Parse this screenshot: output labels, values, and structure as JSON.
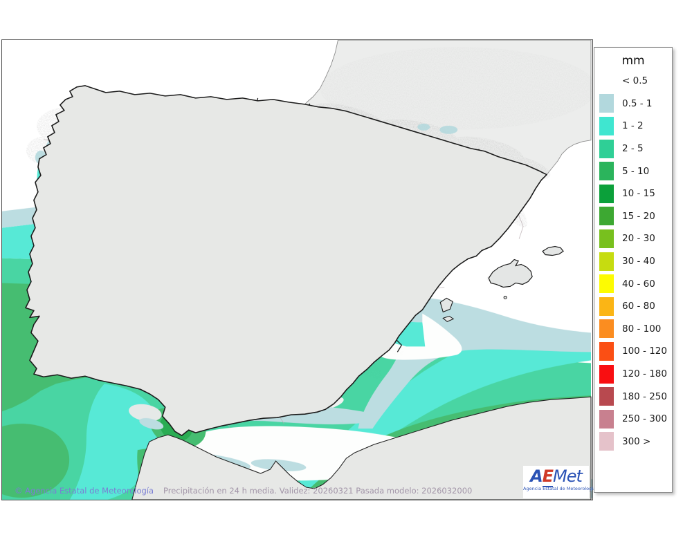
{
  "legend": {
    "title": "mm",
    "entries": [
      {
        "label": "< 0.5",
        "color": null
      },
      {
        "label": "0.5 - 1",
        "color": "#b2d8dd"
      },
      {
        "label": "1 - 2",
        "color": "#3fe6d0"
      },
      {
        "label": "2 - 5",
        "color": "#2fcf96"
      },
      {
        "label": "5 - 10",
        "color": "#2bb45c"
      },
      {
        "label": "10 - 15",
        "color": "#0ba03a"
      },
      {
        "label": "15 - 20",
        "color": "#3da832"
      },
      {
        "label": "20 - 30",
        "color": "#78c01e"
      },
      {
        "label": "30 - 40",
        "color": "#c6dc10"
      },
      {
        "label": "40 - 60",
        "color": "#fdfb02"
      },
      {
        "label": "60 - 80",
        "color": "#fbb515"
      },
      {
        "label": "80 - 100",
        "color": "#fb8d20"
      },
      {
        "label": "100 - 120",
        "color": "#fb4f14"
      },
      {
        "label": "120 - 180",
        "color": "#f90e11"
      },
      {
        "label": "180 - 250",
        "color": "#b8494f"
      },
      {
        "label": "250 - 300",
        "color": "#c8808f"
      },
      {
        "label": "300 >",
        "color": "#e5c2ca"
      }
    ]
  },
  "footer": {
    "copyright": "© Agencia Estatal de Meteorología",
    "model_info": "Precipitación en 24 h media. Validez: 20260321 Pasada modelo: 2026032000"
  },
  "logo": {
    "wordmark": {
      "a": "A",
      "e": "E",
      "met": "Met"
    },
    "subtitle": "Agencia Estatal de Meteorología"
  }
}
